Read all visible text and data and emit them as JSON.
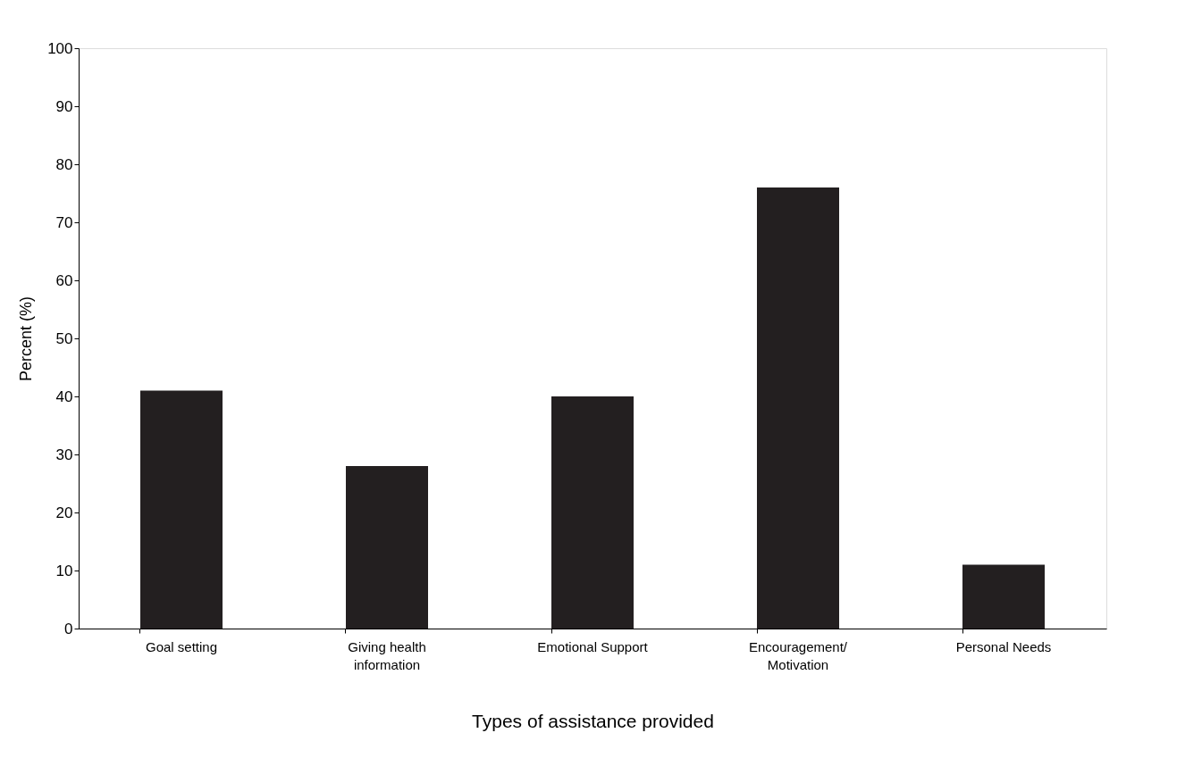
{
  "chart_data": {
    "type": "bar",
    "categories": [
      "Goal setting",
      "Giving health\ninformation",
      "Emotional Support",
      "Encouragement/\nMotivation",
      "Personal Needs"
    ],
    "values": [
      41,
      28,
      40,
      76,
      11
    ],
    "color": "#231f20",
    "xlabel": "Types of assistance provided",
    "ylabel": "Percent (%)",
    "ylim": [
      0,
      100
    ],
    "yticks": [
      0,
      10,
      20,
      30,
      40,
      50,
      60,
      70,
      80,
      90,
      100
    ],
    "grid": false
  }
}
